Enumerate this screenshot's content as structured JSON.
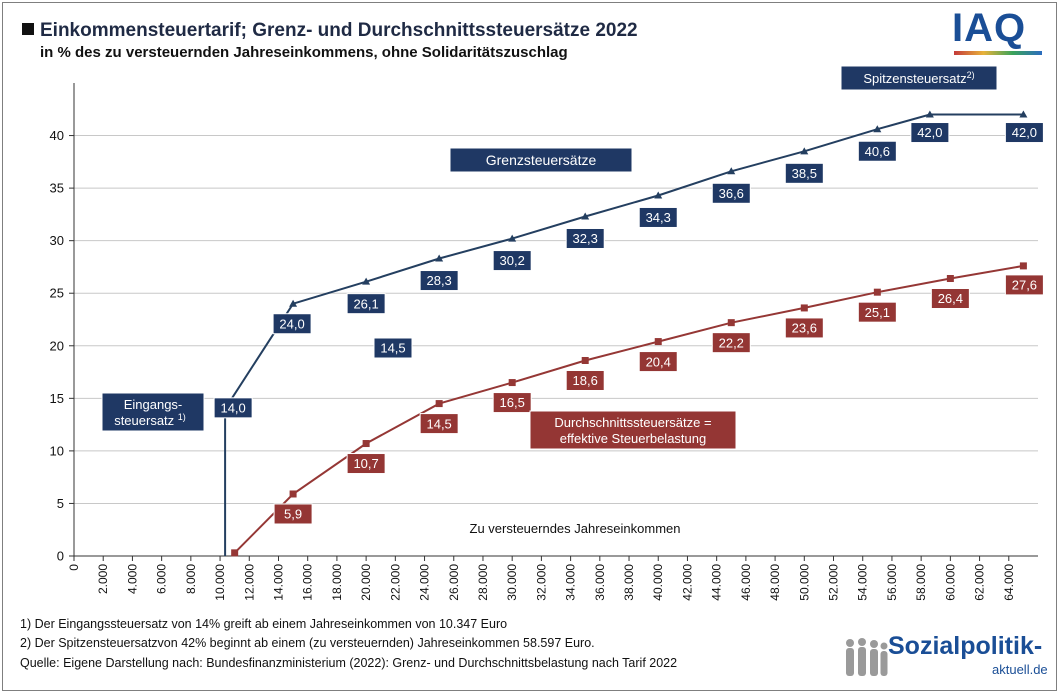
{
  "header": {
    "title": "Einkommensteuertarif; Grenz- und Durchschnittssteuersätze 2022",
    "subtitle": "in % des zu versteuernden Jahreseinkommens, ohne Solidaritätszuschlag",
    "logo": "IAQ"
  },
  "chart_data": {
    "type": "line",
    "xlabel": "Zu versteuerndes Jahreseinkommen",
    "ylabel": "",
    "xlim": [
      0,
      66000
    ],
    "ylim": [
      0,
      45
    ],
    "y_ticks": [
      0,
      5,
      10,
      15,
      20,
      25,
      30,
      35,
      40
    ],
    "x_ticks": [
      "0",
      "2.000",
      "4.000",
      "6.000",
      "8.000",
      "10.000",
      "12.000",
      "14.000",
      "16.000",
      "18.000",
      "20.000",
      "22.000",
      "24.000",
      "26.000",
      "28.000",
      "30.000",
      "32.000",
      "34.000",
      "36.000",
      "38.000",
      "40.000",
      "42.000",
      "44.000",
      "46.000",
      "48.000",
      "50.000",
      "52.000",
      "54.000",
      "56.000",
      "58.000",
      "60.000",
      "62.000",
      "64.000"
    ],
    "series": [
      {
        "name": "Grenzsteuersätze",
        "color": "#243f60",
        "marker": "triangle",
        "x": [
          10347,
          10347,
          15000,
          20000,
          25000,
          30000,
          35000,
          40000,
          45000,
          50000,
          55000,
          58597,
          65000
        ],
        "y": [
          0,
          14.0,
          24.0,
          26.1,
          28.3,
          30.2,
          32.3,
          34.3,
          36.6,
          38.5,
          40.6,
          42.0,
          42.0
        ],
        "point_labels": [
          null,
          "14,0",
          "24,0",
          "26,1",
          "28,3",
          "30,2",
          "32,3",
          "34,3",
          "36,6",
          "38,5",
          "40,6",
          "42,0",
          "42,0"
        ]
      },
      {
        "name": "Durchschnittssteuersätze = effektive Steuerbelastung",
        "color": "#953735",
        "marker": "square",
        "x": [
          11000,
          15000,
          20000,
          25000,
          30000,
          35000,
          40000,
          45000,
          50000,
          55000,
          60000,
          65000
        ],
        "y": [
          0.3,
          5.9,
          10.7,
          14.5,
          16.5,
          18.6,
          20.4,
          22.2,
          23.6,
          25.1,
          26.4,
          27.6
        ],
        "point_labels": [
          null,
          "5,9",
          "10,7",
          "14,5",
          "16,5",
          "18,6",
          "20,4",
          "22,2",
          "23,6",
          "25,1",
          "26,4",
          "27,6"
        ]
      }
    ],
    "annotations": {
      "grenz_label": "Grenzsteuersätze",
      "durchschnitt_label_line1": "Durchschnittssteuersätze =",
      "durchschnitt_label_line2": "effektive Steuerbelastung",
      "eingang_label_line1": "Eingangs-",
      "eingang_label_line2": "steuersatz",
      "eingang_sup": "1)",
      "spitzen_label": "Spitzensteuersatz",
      "spitzen_sup": "2)",
      "extra_value_label": "14,5"
    }
  },
  "footnotes": {
    "note1": "1) Der Eingangssteuersatz von 14% greift ab einem Jahreseinkommen von  10.347 Euro",
    "note2": "2) Der Spitzensteuersatzvon 42%  beginnt ab einem (zu versteuernden) Jahreseinkommen 58.597 Euro.",
    "source": "Quelle: Eigene Darstellung nach: Bundesfinanzministerium (2022): Grenz- und Durchschnittsbelastung nach Tarif 2022"
  },
  "brand": {
    "name": "Sozialpolitik-",
    "domain": "aktuell.de"
  }
}
